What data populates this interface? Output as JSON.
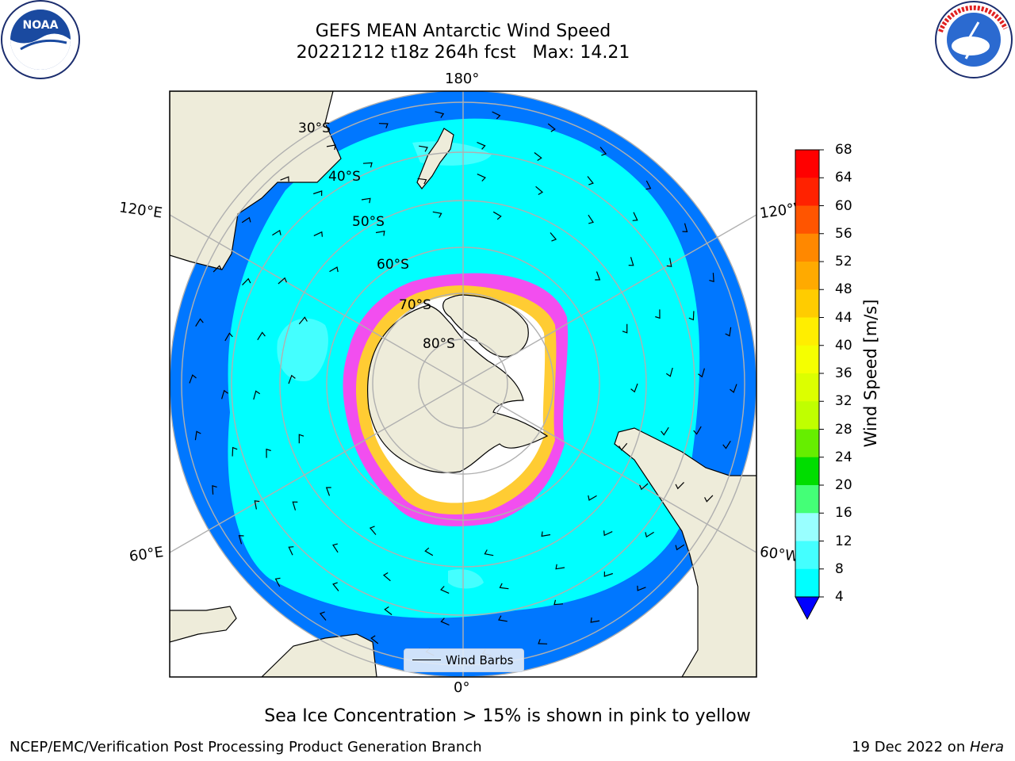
{
  "title": {
    "line1": "GEFS MEAN Antarctic Wind Speed",
    "run": "20221212 t18z 264h fcst",
    "max": "Max: 14.21"
  },
  "map": {
    "longitude_labels": {
      "top": "180°",
      "bottom": "0°",
      "upper_left": "120°E",
      "upper_right": "120°W",
      "lower_left": "60°E",
      "lower_right": "60°W"
    },
    "latitude_labels": [
      "30°S",
      "40°S",
      "50°S",
      "60°S",
      "70°S",
      "80°S"
    ],
    "legend_label": "Wind Barbs",
    "colors": {
      "land": "#eeecda",
      "ocean_4_8": "#0077ff",
      "ocean_8_12": "#00ffff",
      "ocean_12_16": "#44ffff",
      "ice": "#ff44ee",
      "gridline": "#b0b0b0"
    }
  },
  "colorbar": {
    "title": "Wind Speed [m/s]",
    "ticks": [
      "68",
      "64",
      "60",
      "56",
      "52",
      "48",
      "44",
      "40",
      "36",
      "32",
      "28",
      "24",
      "20",
      "16",
      "12",
      "8",
      "4"
    ],
    "colors": [
      "#ff0000",
      "#ff2200",
      "#ff5500",
      "#ff8800",
      "#ffaa00",
      "#ffcc00",
      "#ffee00",
      "#f5ff00",
      "#dcff00",
      "#c0ff00",
      "#66ee00",
      "#00dd00",
      "#44ff77",
      "#99ffff",
      "#44ffff",
      "#00ffff",
      "#0077ff"
    ],
    "under_color": "#0000ff"
  },
  "caption": "Sea Ice Concentration > 15% is shown in pink to yellow",
  "footer": {
    "left": "NCEP/EMC/Verification Post Processing Product Generation Branch",
    "right_prefix": "19 Dec 2022 on ",
    "right_host": "Hera"
  },
  "logos": {
    "left": "NOAA",
    "right": "NATIONAL WEATHER SERVICE"
  }
}
